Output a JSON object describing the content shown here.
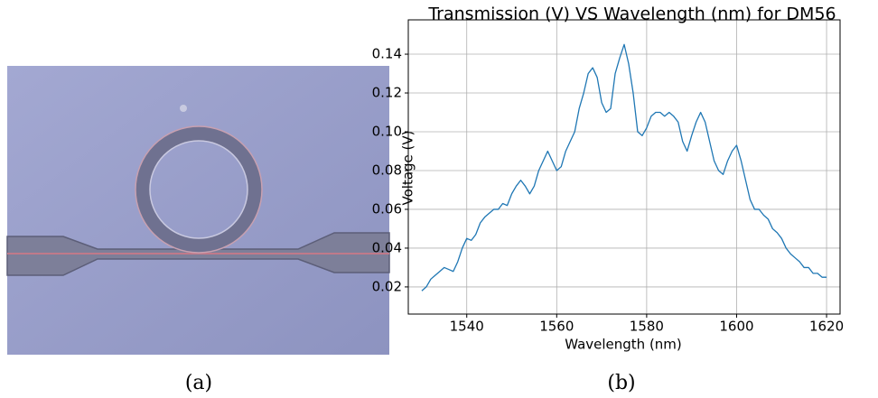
{
  "chart_data": {
    "type": "line",
    "title": "Transmission (V) VS Wavelength (nm) for DM56",
    "x_label": "Wavelength (nm)",
    "y_label": "Voltage (V)",
    "x": [
      1530,
      1531,
      1532,
      1533,
      1534,
      1535,
      1536,
      1537,
      1538,
      1539,
      1540,
      1541,
      1542,
      1543,
      1544,
      1545,
      1546,
      1547,
      1548,
      1549,
      1550,
      1551,
      1552,
      1553,
      1554,
      1555,
      1556,
      1557,
      1558,
      1559,
      1560,
      1561,
      1562,
      1563,
      1564,
      1565,
      1566,
      1567,
      1568,
      1569,
      1570,
      1571,
      1572,
      1573,
      1574,
      1575,
      1576,
      1577,
      1578,
      1579,
      1580,
      1581,
      1582,
      1583,
      1584,
      1585,
      1586,
      1587,
      1588,
      1589,
      1590,
      1591,
      1592,
      1593,
      1594,
      1595,
      1596,
      1597,
      1598,
      1599,
      1600,
      1601,
      1602,
      1603,
      1604,
      1605,
      1606,
      1607,
      1608,
      1609,
      1610,
      1611,
      1612,
      1613,
      1614,
      1615,
      1616,
      1617,
      1618,
      1619,
      1620
    ],
    "values": [
      0.018,
      0.02,
      0.024,
      0.026,
      0.028,
      0.03,
      0.029,
      0.028,
      0.033,
      0.04,
      0.045,
      0.044,
      0.047,
      0.053,
      0.056,
      0.058,
      0.06,
      0.06,
      0.063,
      0.062,
      0.068,
      0.072,
      0.075,
      0.072,
      0.068,
      0.072,
      0.08,
      0.085,
      0.09,
      0.085,
      0.08,
      0.082,
      0.09,
      0.095,
      0.1,
      0.112,
      0.12,
      0.13,
      0.133,
      0.128,
      0.115,
      0.11,
      0.112,
      0.13,
      0.138,
      0.145,
      0.135,
      0.12,
      0.1,
      0.098,
      0.102,
      0.108,
      0.11,
      0.11,
      0.108,
      0.11,
      0.108,
      0.105,
      0.095,
      0.09,
      0.098,
      0.105,
      0.11,
      0.105,
      0.095,
      0.085,
      0.08,
      0.078,
      0.085,
      0.09,
      0.093,
      0.085,
      0.075,
      0.065,
      0.06,
      0.06,
      0.057,
      0.055,
      0.05,
      0.048,
      0.045,
      0.04,
      0.037,
      0.035,
      0.033,
      0.03,
      0.03,
      0.027,
      0.027,
      0.025,
      0.025
    ],
    "color": "#1f77b4",
    "xlim": [
      1527,
      1623
    ],
    "ylim": [
      0.006,
      0.1577
    ],
    "xticks": [
      1540,
      1560,
      1580,
      1600,
      1620
    ],
    "yticks": [
      0.02,
      0.04,
      0.06,
      0.08,
      {
        "value": 0.1,
        "label": "0.10"
      },
      0.12,
      0.14
    ],
    "grid": true
  },
  "captions": {
    "a": "(a)",
    "b": "(b)"
  }
}
